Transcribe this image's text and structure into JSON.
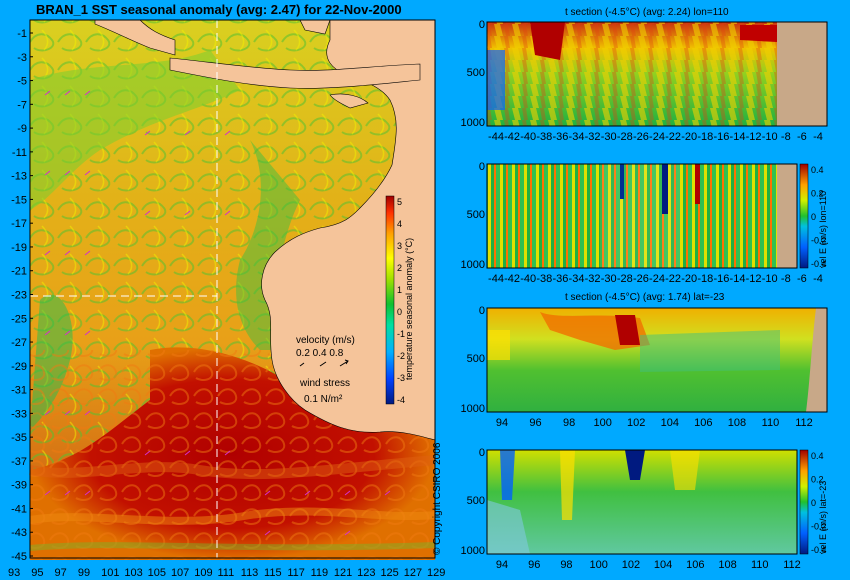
{
  "map": {
    "title": "BRAN_1 SST seasonal anomaly (avg: 2.47) for 22-Nov-2000",
    "lat_ticks": [
      "-1",
      "-3",
      "-5",
      "-7",
      "-9",
      "-11",
      "-13",
      "-15",
      "-17",
      "-19",
      "-21",
      "-23",
      "-25",
      "-27",
      "-29",
      "-31",
      "-33",
      "-35",
      "-37",
      "-39",
      "-41",
      "-43",
      "-45"
    ],
    "lon_ticks": [
      "93",
      "95",
      "97",
      "99",
      "101",
      "103",
      "105",
      "107",
      "109",
      "111",
      "113",
      "115",
      "117",
      "119",
      "121",
      "123",
      "125",
      "127",
      "129"
    ],
    "colorbar_ticks": [
      "5",
      "4",
      "3",
      "2",
      "1",
      "0",
      "-1",
      "-2",
      "-3",
      "-4"
    ],
    "colorbar_label": "temperature seasonal anomaly (°C)",
    "velocity_label": "velocity (m/s)",
    "velocity_scale": "0.2 0.4 0.8",
    "wind_label": "wind stress",
    "wind_scale": "0.1 N/m²",
    "copyright": "© Copyright CSIRO 2006",
    "colors": {
      "land": "#f5c49a",
      "anomaly_high": "#b00000",
      "anomaly_mid": "#f2f200",
      "anomaly_low": "#00b040"
    }
  },
  "panels": [
    {
      "title": "t section (-4.5°C) (avg: 2.24) lon=110",
      "y_ticks": [
        "0",
        "500",
        "1000"
      ],
      "x_ticks": [
        "-44",
        "-42",
        "-40",
        "-38",
        "-36",
        "-34",
        "-32",
        "-30",
        "-28",
        "-26",
        "-24",
        "-22",
        "-20",
        "-18",
        "-16",
        "-14",
        "-12",
        "-10",
        "-8",
        "-6",
        "-4"
      ]
    },
    {
      "title": "",
      "y_ticks": [
        "0",
        "500",
        "1000"
      ],
      "x_ticks": [
        "-44",
        "-42",
        "-40",
        "-38",
        "-36",
        "-34",
        "-32",
        "-30",
        "-28",
        "-26",
        "-24",
        "-22",
        "-20",
        "-18",
        "-16",
        "-14",
        "-12",
        "-10",
        "-8",
        "-6",
        "-4"
      ],
      "colorbar_ticks": [
        "0.4",
        "0.2",
        "0",
        "-0.2",
        "-0.4"
      ],
      "colorbar_label": "vel E (m/s) lon=110"
    },
    {
      "title": "t section (-4.5°C) (avg: 1.74) lat=-23",
      "y_ticks": [
        "0",
        "500",
        "1000"
      ],
      "x_ticks": [
        "94",
        "96",
        "98",
        "100",
        "102",
        "104",
        "106",
        "108",
        "110",
        "112"
      ]
    },
    {
      "title": "",
      "y_ticks": [
        "0",
        "500",
        "1000"
      ],
      "x_ticks": [
        "94",
        "96",
        "98",
        "100",
        "102",
        "104",
        "106",
        "108",
        "110",
        "112"
      ],
      "colorbar_ticks": [
        "0.4",
        "0.2",
        "0",
        "-0.2",
        "-0.4"
      ],
      "colorbar_label": "vel E (m/s) lat=-23"
    }
  ],
  "chart_data": [
    {
      "type": "heatmap",
      "title": "BRAN_1 SST seasonal anomaly (avg: 2.47) for 22-Nov-2000",
      "x_range": [
        93,
        130
      ],
      "y_range": [
        -45,
        0
      ],
      "colorbar_range": [
        -4,
        5
      ],
      "colorbar_label": "temperature seasonal anomaly (°C)"
    },
    {
      "type": "heatmap",
      "title": "t section (-4.5°C) (avg: 2.24) lon=110",
      "x_range": [
        -45,
        -3
      ],
      "y_range": [
        1050,
        0
      ]
    },
    {
      "type": "heatmap",
      "title": "",
      "x_range": [
        -45,
        -3
      ],
      "y_range": [
        1050,
        0
      ],
      "colorbar_range": [
        -0.4,
        0.4
      ],
      "colorbar_label": "vel E (m/s) lon=110"
    },
    {
      "type": "heatmap",
      "title": "t section (-4.5°C) (avg: 1.74) lat=-23",
      "x_range": [
        93,
        114
      ],
      "y_range": [
        1050,
        0
      ]
    },
    {
      "type": "heatmap",
      "title": "",
      "x_range": [
        93,
        114
      ],
      "y_range": [
        1050,
        0
      ],
      "colorbar_range": [
        -0.4,
        0.4
      ],
      "colorbar_label": "vel E (m/s) lat=-23"
    }
  ]
}
